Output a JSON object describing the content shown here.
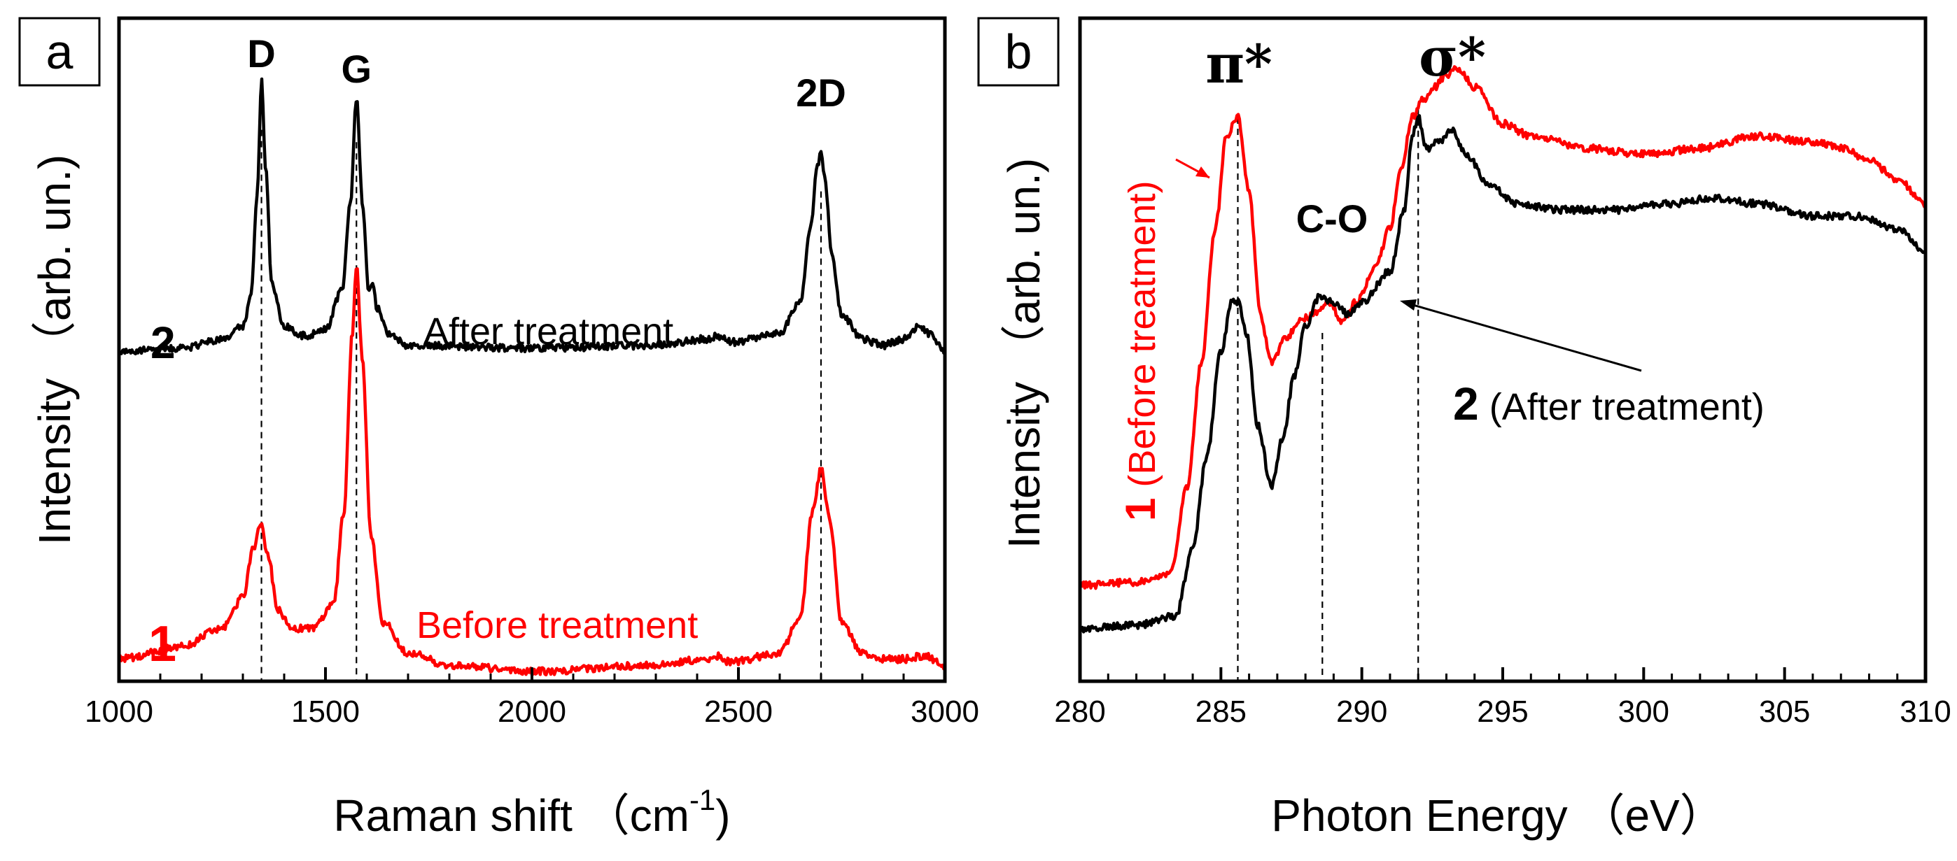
{
  "colors": {
    "after": "#000000",
    "before": "#ff0000"
  },
  "panel_a": {
    "label": "a",
    "curve_label_after": "2",
    "curve_label_before": "1",
    "after_text": "After treatment",
    "before_text": "Before treatment",
    "ylabel_main": "Intensity",
    "ylabel_unit": "（arb. un.)",
    "xlabel_main": "Raman shift （cm",
    "xlabel_sup": "-1",
    "xlabel_end": ")"
  },
  "panel_b": {
    "label": "b",
    "pi_label": "π*",
    "sigma_label": "σ*",
    "co_label": "C-O",
    "before_num": "1",
    "before_text": " (Before treatment)",
    "after_num": "2",
    "after_text": " (After treatment)",
    "ylabel_main": "Intensity",
    "ylabel_unit": "（arb. un.)",
    "xlabel": "Photon Energy （eV）"
  },
  "chart_data": [
    {
      "type": "line",
      "title": "",
      "panel": "a",
      "xlabel": "Raman shift (cm-1)",
      "ylabel": "Intensity (arb. un.)",
      "xlim": [
        1000,
        3000
      ],
      "ylim": [
        0,
        1
      ],
      "xticks": [
        1000,
        1500,
        2000,
        2500,
        3000
      ],
      "peaks": [
        {
          "name": "D",
          "x": 1345
        },
        {
          "name": "G",
          "x": 1575
        },
        {
          "name": "2D",
          "x": 2700
        }
      ],
      "series": [
        {
          "name": "After treatment",
          "label": "2",
          "color": "#000000",
          "x": [
            1000,
            1150,
            1250,
            1300,
            1320,
            1335,
            1345,
            1355,
            1370,
            1400,
            1450,
            1500,
            1540,
            1560,
            1575,
            1590,
            1605,
            1615,
            1625,
            1650,
            1700,
            2000,
            2300,
            2420,
            2450,
            2480,
            2600,
            2650,
            2675,
            2690,
            2700,
            2710,
            2725,
            2750,
            2800,
            2850,
            2900,
            2935,
            2960,
            3000
          ],
          "y": [
            0.52,
            0.525,
            0.54,
            0.56,
            0.61,
            0.78,
            0.96,
            0.82,
            0.63,
            0.56,
            0.545,
            0.555,
            0.62,
            0.76,
            0.93,
            0.76,
            0.62,
            0.625,
            0.59,
            0.55,
            0.53,
            0.525,
            0.53,
            0.54,
            0.545,
            0.535,
            0.55,
            0.6,
            0.72,
            0.82,
            0.84,
            0.8,
            0.68,
            0.58,
            0.54,
            0.53,
            0.54,
            0.56,
            0.55,
            0.52
          ]
        },
        {
          "name": "Before treatment",
          "label": "1",
          "color": "#ff0000",
          "x": [
            1000,
            1150,
            1250,
            1300,
            1325,
            1345,
            1360,
            1385,
            1420,
            1470,
            1520,
            1545,
            1565,
            1575,
            1590,
            1610,
            1640,
            1700,
            1800,
            2000,
            2300,
            2420,
            2450,
            2480,
            2600,
            2650,
            2680,
            2700,
            2720,
            2750,
            2800,
            2850,
            2900,
            2950,
            3000
          ],
          "y": [
            0.02,
            0.04,
            0.07,
            0.12,
            0.2,
            0.24,
            0.19,
            0.1,
            0.07,
            0.07,
            0.11,
            0.26,
            0.55,
            0.66,
            0.5,
            0.22,
            0.08,
            0.03,
            0.01,
            0.0,
            0.01,
            0.02,
            0.025,
            0.015,
            0.03,
            0.09,
            0.26,
            0.33,
            0.25,
            0.08,
            0.03,
            0.02,
            0.02,
            0.025,
            0.01
          ]
        }
      ]
    },
    {
      "type": "line",
      "title": "",
      "panel": "b",
      "xlabel": "Photon Energy (eV)",
      "ylabel": "Intensity (arb. un.)",
      "xlim": [
        280,
        310
      ],
      "ylim": [
        0,
        1
      ],
      "xticks": [
        280,
        285,
        290,
        295,
        300,
        305,
        310
      ],
      "peaks": [
        {
          "name": "π*",
          "x": 285.6
        },
        {
          "name": "C-O",
          "x": 288.6
        },
        {
          "name": "σ*",
          "x": 292
        }
      ],
      "series": [
        {
          "name": "Before treatment",
          "label": "1",
          "color": "#ff0000",
          "x": [
            280,
            282,
            283.2,
            283.8,
            284.3,
            284.8,
            285.2,
            285.6,
            286,
            286.4,
            286.8,
            287.3,
            287.8,
            288.3,
            288.8,
            289.3,
            289.8,
            290.5,
            291,
            291.4,
            291.8,
            292.2,
            292.6,
            293,
            293.4,
            294,
            295,
            296,
            298,
            300,
            302,
            304,
            306,
            307,
            308,
            309,
            310
          ],
          "y": [
            0.14,
            0.145,
            0.16,
            0.3,
            0.5,
            0.72,
            0.87,
            0.9,
            0.78,
            0.58,
            0.5,
            0.54,
            0.57,
            0.58,
            0.6,
            0.57,
            0.6,
            0.66,
            0.72,
            0.82,
            0.9,
            0.93,
            0.95,
            0.97,
            0.98,
            0.95,
            0.89,
            0.87,
            0.85,
            0.84,
            0.85,
            0.87,
            0.86,
            0.85,
            0.83,
            0.8,
            0.76
          ]
        },
        {
          "name": "After treatment",
          "label": "2",
          "color": "#000000",
          "x": [
            280,
            282,
            283.4,
            284,
            284.5,
            285,
            285.4,
            285.6,
            285.9,
            286.3,
            286.8,
            287.2,
            287.6,
            288,
            288.5,
            289,
            289.5,
            290,
            291,
            291.5,
            291.8,
            292,
            292.3,
            292.7,
            293.2,
            293.7,
            294.5,
            295.5,
            297,
            299,
            301,
            302.5,
            304,
            306,
            307.5,
            309,
            310
          ],
          "y": [
            0.07,
            0.075,
            0.09,
            0.2,
            0.35,
            0.52,
            0.6,
            0.6,
            0.55,
            0.4,
            0.3,
            0.38,
            0.48,
            0.56,
            0.61,
            0.6,
            0.58,
            0.6,
            0.65,
            0.75,
            0.87,
            0.9,
            0.85,
            0.86,
            0.88,
            0.84,
            0.79,
            0.76,
            0.75,
            0.75,
            0.76,
            0.77,
            0.76,
            0.74,
            0.74,
            0.72,
            0.68
          ]
        }
      ]
    }
  ]
}
